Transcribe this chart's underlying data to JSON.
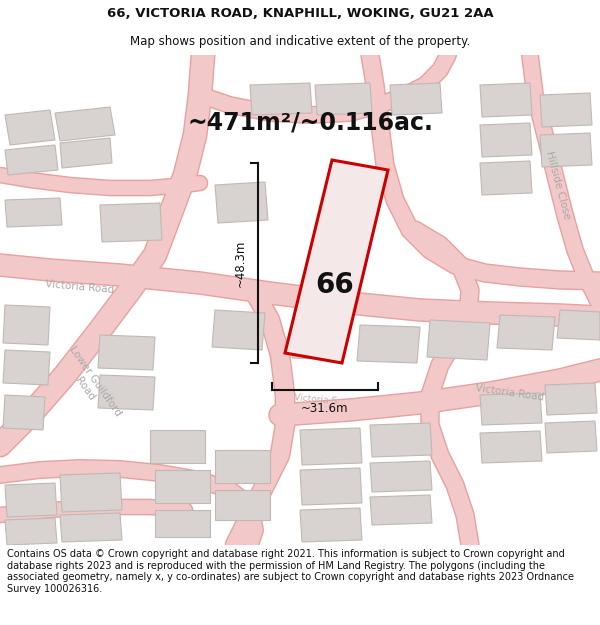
{
  "title_line1": "66, VICTORIA ROAD, KNAPHILL, WOKING, GU21 2AA",
  "title_line2": "Map shows position and indicative extent of the property.",
  "area_text": "~471m²/~0.116ac.",
  "label_height": "~48.3m",
  "label_width": "~31.6m",
  "property_number": "66",
  "footer_text": "Contains OS data © Crown copyright and database right 2021. This information is subject to Crown copyright and database rights 2023 and is reproduced with the permission of HM Land Registry. The polygons (including the associated geometry, namely x, y co-ordinates) are subject to Crown copyright and database rights 2023 Ordnance Survey 100026316.",
  "bg_color": "#eeebe9",
  "road_color": "#f2c8c8",
  "road_outline_color": "#e8a0a0",
  "building_color": "#d8d3d0",
  "building_outline": "#c0b8b4",
  "property_fill": "#f5e8e8",
  "property_outline_color": "#cc0000",
  "dimension_color": "#111111",
  "text_color": "#111111",
  "road_label_color": "#aaaaaa",
  "title_fontsize": 9.5,
  "subtitle_fontsize": 8.5,
  "area_fontsize": 17,
  "dim_fontsize": 8.5,
  "property_num_fontsize": 20,
  "footer_fontsize": 7.0
}
